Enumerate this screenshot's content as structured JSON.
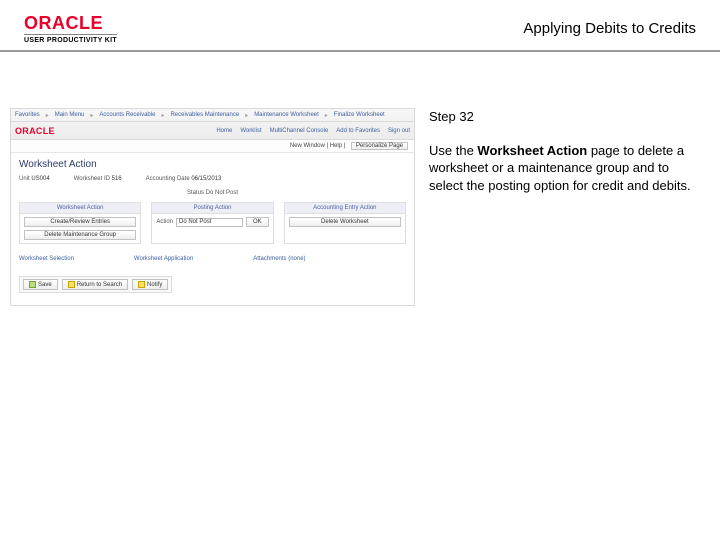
{
  "header": {
    "brand": "ORACLE",
    "brand_sub": "USER PRODUCTIVITY KIT",
    "page_title": "Applying Debits to Credits"
  },
  "instructions": {
    "step_label": "Step 32",
    "body_before": "Use the ",
    "body_bold": "Worksheet Action",
    "body_after": " page to delete a worksheet or a maintenance group and to select the posting option for credit and debits."
  },
  "app": {
    "breadcrumbs": {
      "a": "Favorites",
      "b": "Main Menu",
      "c": "Accounts Receivable",
      "d": "Receivables Maintenance",
      "e": "Maintenance Worksheet",
      "f": "Finalize Worksheet"
    },
    "nav": {
      "brand": "ORACLE",
      "home": "Home",
      "worklist": "Worklist",
      "mcc": "MultiChannel Console",
      "addto": "Add to Favorites",
      "signout": "Sign out"
    },
    "user_row": {
      "text": "New Window | Help | ",
      "btn": "Personalize Page"
    },
    "page_h1": "Worksheet Action",
    "summary": {
      "unit_lbl": "Unit",
      "unit_val": "US004",
      "ws_lbl": "Worksheet ID",
      "ws_val": "516",
      "date_lbl": "Accounting Date",
      "date_val": "06/15/2013"
    },
    "status_center_lbl": "Status",
    "status_center_val": "Do Not Post",
    "panels": {
      "ws": {
        "title": "Worksheet Action",
        "btn1": "Create/Review Entries",
        "btn2": "Delete Maintenance Group"
      },
      "posting": {
        "title": "Posting Action",
        "action_lbl": "Action",
        "action_val": "Do Not Post",
        "ok": "OK"
      },
      "acct": {
        "title": "Accounting Entry Action",
        "btn": "Delete Worksheet"
      }
    },
    "links": {
      "a": "Worksheet Selection",
      "b": "Worksheet Application",
      "c": "Attachments (none)"
    },
    "footer": {
      "save": "Save",
      "ret": "Return to Search",
      "notify": "Notify"
    }
  }
}
